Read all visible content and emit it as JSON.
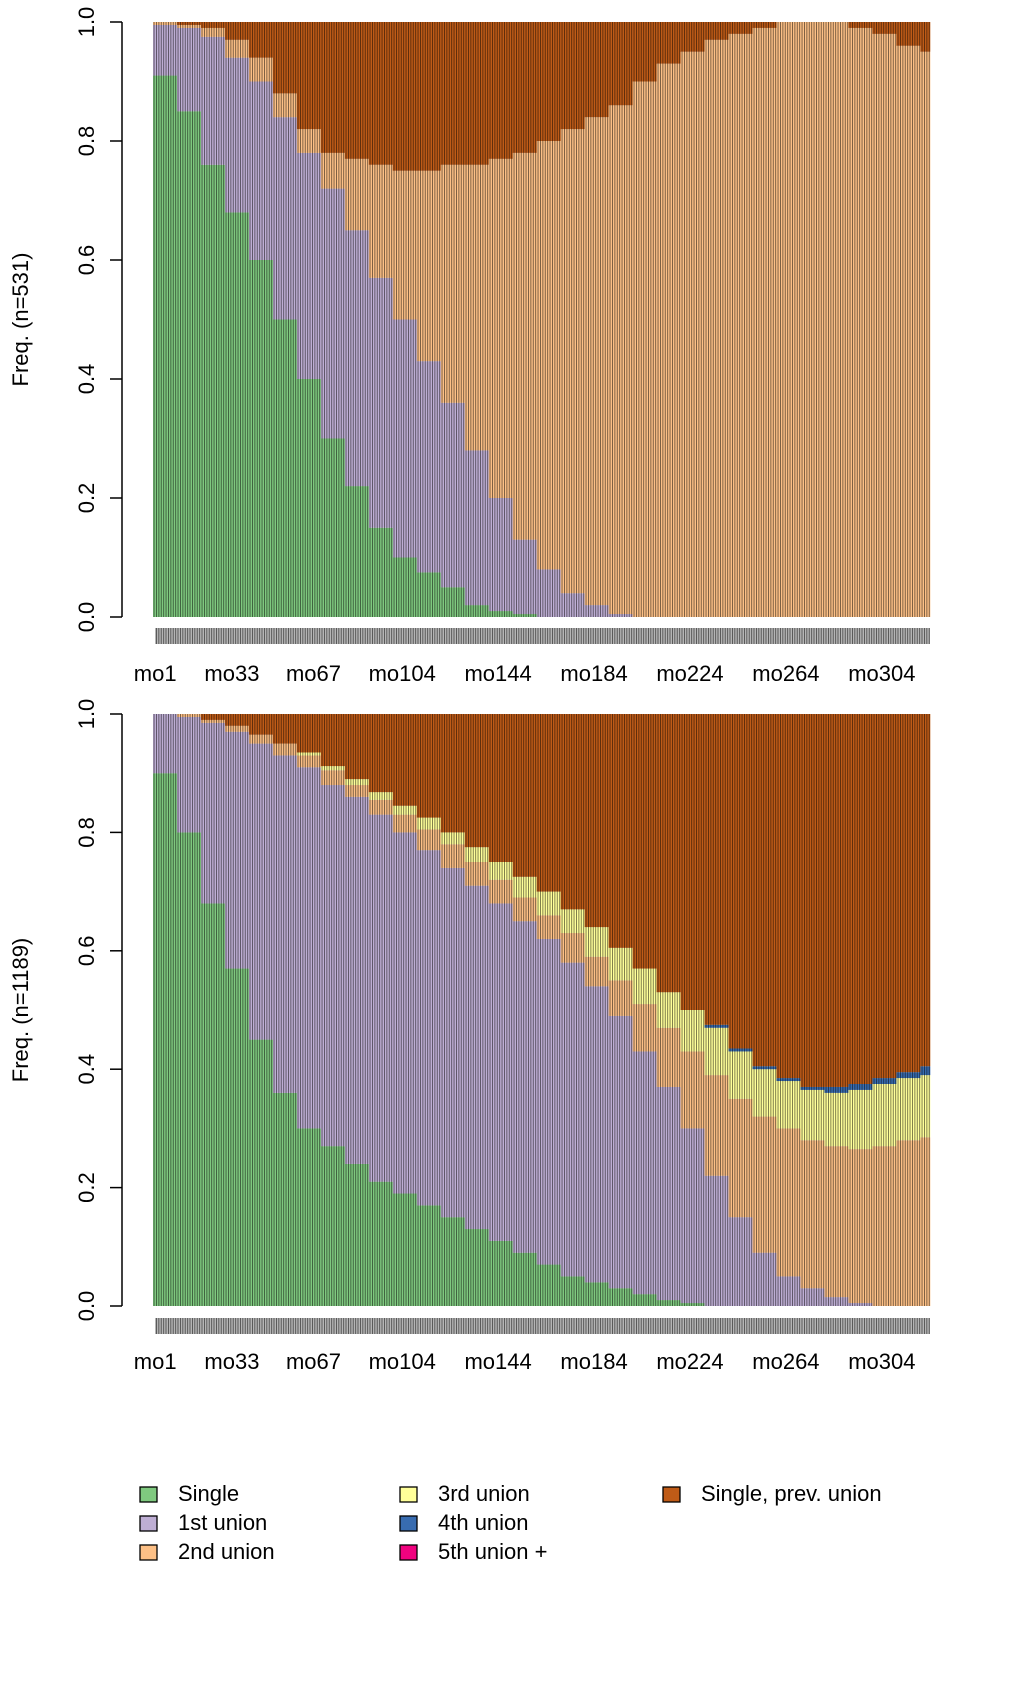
{
  "chart_data": [
    {
      "type": "bar",
      "stacked": true,
      "ylabel": "Freq. (n=531)",
      "x": [
        1,
        11,
        21,
        31,
        41,
        51,
        61,
        71,
        81,
        91,
        101,
        111,
        121,
        131,
        141,
        151,
        161,
        171,
        181,
        191,
        201,
        211,
        221,
        231,
        241,
        251,
        261,
        271,
        281,
        291,
        301,
        311,
        321
      ],
      "xlim": [
        0.5,
        324.5
      ],
      "xticks": [
        {
          "value": 1,
          "label": "mo1"
        },
        {
          "value": 33,
          "label": "mo33"
        },
        {
          "value": 67,
          "label": "mo67"
        },
        {
          "value": 104,
          "label": "mo104"
        },
        {
          "value": 144,
          "label": "mo144"
        },
        {
          "value": 184,
          "label": "mo184"
        },
        {
          "value": 224,
          "label": "mo224"
        },
        {
          "value": 264,
          "label": "mo264"
        },
        {
          "value": 304,
          "label": "mo304"
        }
      ],
      "ylim": [
        0,
        1
      ],
      "yticks": [
        {
          "value": 0,
          "label": "0.0"
        },
        0.2,
        0.4,
        0.6,
        0.8,
        {
          "value": 1,
          "label": "1.0"
        }
      ],
      "series": [
        {
          "values": [
            0.91,
            0.85,
            0.76,
            0.68,
            0.6,
            0.5,
            0.4,
            0.3,
            0.22,
            0.15,
            0.1,
            0.075,
            0.05,
            0.02,
            0.01,
            0.005,
            0,
            0,
            0,
            0,
            0,
            0,
            0,
            0,
            0,
            0,
            0,
            0,
            0,
            0,
            0,
            0,
            0
          ]
        },
        {
          "values": [
            0.085,
            0.14,
            0.215,
            0.26,
            0.3,
            0.34,
            0.38,
            0.42,
            0.43,
            0.42,
            0.4,
            0.355,
            0.31,
            0.26,
            0.19,
            0.125,
            0.08,
            0.04,
            0.02,
            0.005,
            0,
            0,
            0,
            0,
            0,
            0,
            0,
            0,
            0,
            0,
            0,
            0,
            0
          ]
        },
        {
          "values": [
            0.005,
            0.005,
            0.015,
            0.03,
            0.04,
            0.04,
            0.04,
            0.06,
            0.12,
            0.19,
            0.25,
            0.32,
            0.4,
            0.48,
            0.57,
            0.65,
            0.72,
            0.78,
            0.82,
            0.855,
            0.9,
            0.93,
            0.95,
            0.97,
            0.98,
            0.99,
            1,
            1,
            1,
            0.99,
            0.98,
            0.96,
            0.95
          ]
        },
        {
          "values": [
            0,
            0,
            0,
            0,
            0,
            0,
            0,
            0,
            0,
            0,
            0,
            0,
            0,
            0,
            0,
            0,
            0,
            0,
            0,
            0,
            0,
            0,
            0,
            0,
            0,
            0,
            0,
            0,
            0,
            0,
            0,
            0,
            0
          ]
        },
        {
          "values": [
            0,
            0,
            0,
            0,
            0,
            0,
            0,
            0,
            0,
            0,
            0,
            0,
            0,
            0,
            0,
            0,
            0,
            0,
            0,
            0,
            0,
            0,
            0,
            0,
            0,
            0,
            0,
            0,
            0,
            0,
            0,
            0,
            0
          ]
        },
        {
          "values": [
            0,
            0,
            0,
            0,
            0,
            0,
            0,
            0,
            0,
            0,
            0,
            0,
            0,
            0,
            0,
            0,
            0,
            0,
            0,
            0,
            0,
            0,
            0,
            0,
            0,
            0,
            0,
            0,
            0,
            0,
            0,
            0,
            0
          ]
        },
        {
          "values": [
            0,
            0.005,
            0.01,
            0.03,
            0.06,
            0.12,
            0.18,
            0.22,
            0.23,
            0.24,
            0.25,
            0.25,
            0.24,
            0.24,
            0.23,
            0.22,
            0.2,
            0.18,
            0.16,
            0.14,
            0.1,
            0.07,
            0.05,
            0.03,
            0.02,
            0.01,
            0,
            0,
            0,
            0.01,
            0.02,
            0.04,
            0.05
          ]
        }
      ]
    },
    {
      "type": "bar",
      "stacked": true,
      "ylabel": "Freq. (n=1189)",
      "x": [
        1,
        11,
        21,
        31,
        41,
        51,
        61,
        71,
        81,
        91,
        101,
        111,
        121,
        131,
        141,
        151,
        161,
        171,
        181,
        191,
        201,
        211,
        221,
        231,
        241,
        251,
        261,
        271,
        281,
        291,
        301,
        311,
        321
      ],
      "xlim": [
        0.5,
        324.5
      ],
      "xticks": [
        {
          "value": 1,
          "label": "mo1"
        },
        {
          "value": 33,
          "label": "mo33"
        },
        {
          "value": 67,
          "label": "mo67"
        },
        {
          "value": 104,
          "label": "mo104"
        },
        {
          "value": 144,
          "label": "mo144"
        },
        {
          "value": 184,
          "label": "mo184"
        },
        {
          "value": 224,
          "label": "mo224"
        },
        {
          "value": 264,
          "label": "mo264"
        },
        {
          "value": 304,
          "label": "mo304"
        }
      ],
      "ylim": [
        0,
        1
      ],
      "yticks": [
        {
          "value": 0,
          "label": "0.0"
        },
        0.2,
        0.4,
        0.6,
        0.8,
        {
          "value": 1,
          "label": "1.0"
        }
      ],
      "series": [
        {
          "values": [
            0.9,
            0.8,
            0.68,
            0.57,
            0.45,
            0.36,
            0.3,
            0.27,
            0.24,
            0.21,
            0.19,
            0.17,
            0.15,
            0.13,
            0.11,
            0.09,
            0.07,
            0.05,
            0.04,
            0.03,
            0.02,
            0.01,
            0.005,
            0,
            0,
            0,
            0,
            0,
            0,
            0,
            0,
            0,
            0
          ]
        },
        {
          "values": [
            0.1,
            0.195,
            0.305,
            0.4,
            0.5,
            0.57,
            0.61,
            0.61,
            0.62,
            0.62,
            0.61,
            0.6,
            0.59,
            0.58,
            0.57,
            0.56,
            0.55,
            0.53,
            0.5,
            0.46,
            0.41,
            0.36,
            0.295,
            0.22,
            0.15,
            0.09,
            0.05,
            0.03,
            0.015,
            0.005,
            0,
            0,
            0
          ]
        },
        {
          "values": [
            0,
            0.005,
            0.005,
            0.01,
            0.015,
            0.02,
            0.02,
            0.025,
            0.02,
            0.025,
            0.03,
            0.035,
            0.04,
            0.04,
            0.04,
            0.04,
            0.04,
            0.05,
            0.05,
            0.06,
            0.08,
            0.1,
            0.13,
            0.17,
            0.2,
            0.23,
            0.25,
            0.25,
            0.255,
            0.26,
            0.27,
            0.28,
            0.285
          ]
        },
        {
          "values": [
            0,
            0,
            0,
            0,
            0,
            0,
            0.005,
            0.007,
            0.01,
            0.013,
            0.015,
            0.02,
            0.02,
            0.025,
            0.03,
            0.035,
            0.04,
            0.04,
            0.05,
            0.055,
            0.06,
            0.06,
            0.07,
            0.08,
            0.08,
            0.08,
            0.08,
            0.085,
            0.09,
            0.1,
            0.105,
            0.105,
            0.105
          ]
        },
        {
          "values": [
            0,
            0,
            0,
            0,
            0,
            0,
            0,
            0,
            0,
            0,
            0,
            0,
            0,
            0,
            0,
            0,
            0,
            0,
            0,
            0,
            0,
            0,
            0,
            0.005,
            0.005,
            0.005,
            0.005,
            0.005,
            0.01,
            0.01,
            0.01,
            0.01,
            0.015
          ]
        },
        {
          "values": [
            0,
            0,
            0,
            0,
            0,
            0,
            0,
            0,
            0,
            0,
            0,
            0,
            0,
            0,
            0,
            0,
            0,
            0,
            0,
            0,
            0,
            0,
            0,
            0,
            0,
            0,
            0,
            0,
            0,
            0,
            0,
            0,
            0
          ]
        },
        {
          "values": [
            0,
            0,
            0.01,
            0.02,
            0.035,
            0.05,
            0.065,
            0.088,
            0.11,
            0.132,
            0.155,
            0.175,
            0.2,
            0.225,
            0.25,
            0.275,
            0.3,
            0.33,
            0.36,
            0.395,
            0.43,
            0.47,
            0.5,
            0.525,
            0.565,
            0.595,
            0.615,
            0.63,
            0.63,
            0.625,
            0.615,
            0.605,
            0.595
          ]
        }
      ]
    }
  ],
  "legend": {
    "columns": 3,
    "entries": [
      {
        "name": "Single",
        "color": "#7FC97F"
      },
      {
        "name": "1st union",
        "color": "#BEAED4"
      },
      {
        "name": "2nd union",
        "color": "#FDC086"
      },
      {
        "name": "3rd union",
        "color": "#FFFF99"
      },
      {
        "name": "4th union",
        "color": "#386CB0"
      },
      {
        "name": "5th union +",
        "color": "#F0027F"
      },
      {
        "name": "Single, prev. union",
        "color": "#BF5B17"
      }
    ]
  }
}
